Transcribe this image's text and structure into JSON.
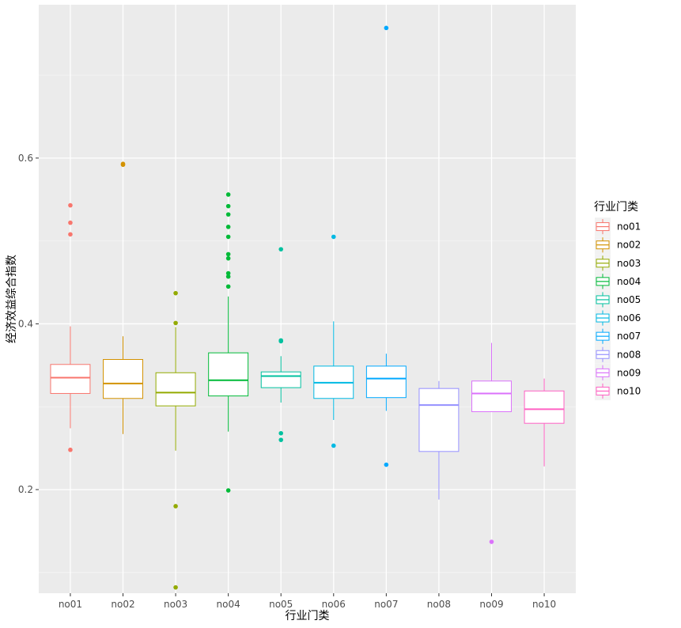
{
  "chart_data": {
    "type": "boxplot",
    "xlabel": "行业门类",
    "ylabel": "经济效益综合指数",
    "ylim": [
      0.075,
      0.785
    ],
    "yticks": [
      0.2,
      0.4,
      0.6
    ],
    "ytick_labels": [
      "0.2",
      "0.4",
      "0.6"
    ],
    "grid": true,
    "legend": {
      "title": "行业门类",
      "position": "right"
    },
    "categories": [
      "no01",
      "no02",
      "no03",
      "no04",
      "no05",
      "no06",
      "no07",
      "no08",
      "no09",
      "no10"
    ],
    "colors": [
      "#F8766D",
      "#D39200",
      "#93AA00",
      "#00BA38",
      "#00C19F",
      "#00B9E3",
      "#00A9FF",
      "#9590FF",
      "#DB72FB",
      "#FF61C3"
    ],
    "series": [
      {
        "category": "no01",
        "whisker_low": 0.274,
        "q1": 0.316,
        "median": 0.335,
        "q3": 0.351,
        "whisker_high": 0.397,
        "outliers": [
          0.543,
          0.522,
          0.508,
          0.248
        ]
      },
      {
        "category": "no02",
        "whisker_low": 0.267,
        "q1": 0.31,
        "median": 0.328,
        "q3": 0.357,
        "whisker_high": 0.385,
        "outliers": [
          0.593,
          0.592
        ]
      },
      {
        "category": "no03",
        "whisker_low": 0.247,
        "q1": 0.301,
        "median": 0.317,
        "q3": 0.341,
        "whisker_high": 0.396,
        "outliers": [
          0.437,
          0.401,
          0.18,
          0.082
        ]
      },
      {
        "category": "no04",
        "whisker_low": 0.27,
        "q1": 0.313,
        "median": 0.332,
        "q3": 0.365,
        "whisker_high": 0.433,
        "outliers": [
          0.556,
          0.542,
          0.532,
          0.517,
          0.505,
          0.484,
          0.479,
          0.461,
          0.457,
          0.445,
          0.199
        ]
      },
      {
        "category": "no05",
        "whisker_low": 0.305,
        "q1": 0.323,
        "median": 0.337,
        "q3": 0.342,
        "whisker_high": 0.361,
        "outliers": [
          0.49,
          0.38,
          0.379,
          0.268,
          0.26
        ]
      },
      {
        "category": "no06",
        "whisker_low": 0.284,
        "q1": 0.31,
        "median": 0.329,
        "q3": 0.349,
        "whisker_high": 0.403,
        "outliers": [
          0.505,
          0.253
        ]
      },
      {
        "category": "no07",
        "whisker_low": 0.295,
        "q1": 0.311,
        "median": 0.334,
        "q3": 0.349,
        "whisker_high": 0.364,
        "outliers": [
          0.757,
          0.23
        ]
      },
      {
        "category": "no08",
        "whisker_low": 0.188,
        "q1": 0.246,
        "median": 0.302,
        "q3": 0.322,
        "whisker_high": 0.331,
        "outliers": []
      },
      {
        "category": "no09",
        "whisker_low": 0.294,
        "q1": 0.294,
        "median": 0.316,
        "q3": 0.331,
        "whisker_high": 0.377,
        "outliers": [
          0.137
        ]
      },
      {
        "category": "no10",
        "whisker_low": 0.228,
        "q1": 0.28,
        "median": 0.297,
        "q3": 0.319,
        "whisker_high": 0.334,
        "outliers": []
      }
    ]
  }
}
